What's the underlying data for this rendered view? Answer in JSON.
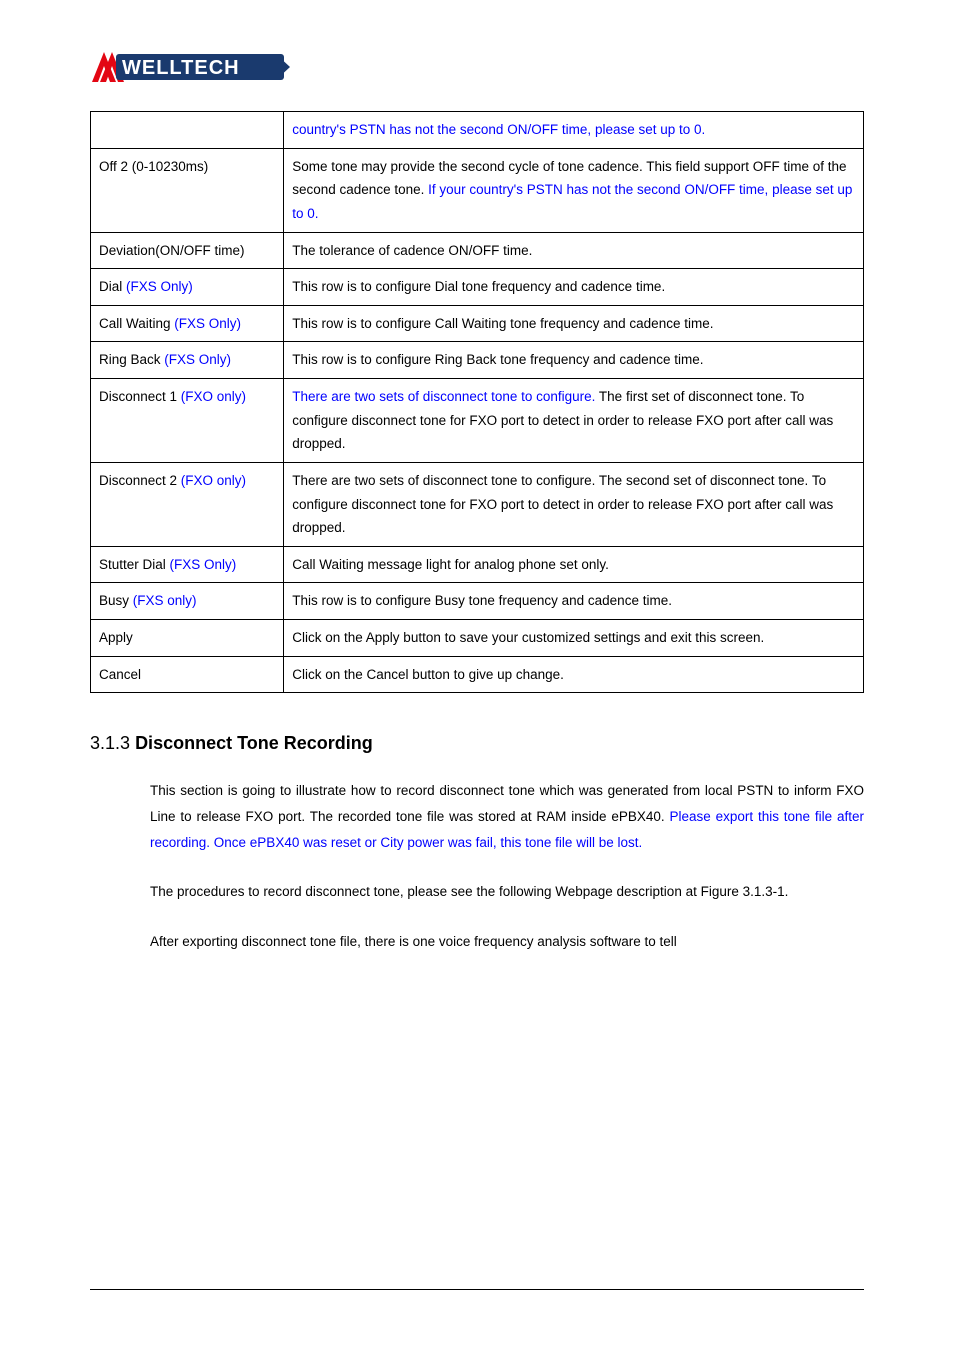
{
  "logo": {
    "arrow_color": "#e30613",
    "text_fill": "#ffffff",
    "text_bg": "#1a3a6e",
    "label": "WELLTECH"
  },
  "table": {
    "border_color": "#000000",
    "font_size": 13.5,
    "row_padding": "6px 8px",
    "rows": [
      {
        "label": "",
        "label_class": "",
        "desc_parts": [
          {
            "text": "country's PSTN has not the second ON/OFF time, please set up to 0.",
            "blue": true
          }
        ]
      },
      {
        "label": "Off 2 (0-10230ms)",
        "label_class": "",
        "desc_parts": [
          {
            "text": "Some tone may provide the second cycle of tone cadence. This field support OFF time of the second cadence tone. ",
            "blue": false
          },
          {
            "text": "If your country's PSTN has not the second ON/OFF time, please set up to 0.",
            "blue": true
          }
        ]
      },
      {
        "label": "Deviation(ON/OFF time)",
        "label_class": "",
        "desc_parts": [
          {
            "text": "The tolerance of cadence ON/OFF time.",
            "blue": false
          }
        ]
      },
      {
        "label_parts": [
          {
            "text": "Dial ",
            "blue": false
          },
          {
            "text": "(FXS Only)",
            "blue": true
          }
        ],
        "desc_parts": [
          {
            "text": "This row is to configure Dial tone frequency and cadence time.",
            "blue": false
          }
        ]
      },
      {
        "label_parts": [
          {
            "text": "Call Waiting ",
            "blue": false
          },
          {
            "text": "(FXS Only)",
            "blue": true
          }
        ],
        "desc_parts": [
          {
            "text": "This row is to configure Call Waiting tone frequency and cadence time.",
            "blue": false
          }
        ]
      },
      {
        "label_parts": [
          {
            "text": "Ring Back ",
            "blue": false
          },
          {
            "text": "(FXS Only)",
            "blue": true
          }
        ],
        "desc_parts": [
          {
            "text": "This row is to configure Ring Back tone frequency and cadence time.",
            "blue": false
          }
        ]
      },
      {
        "label_parts": [
          {
            "text": "Disconnect 1 ",
            "blue": false
          },
          {
            "text": "(FXO only)",
            "blue": true
          }
        ],
        "desc_parts": [
          {
            "text": "There are two sets of disconnect tone to configure.",
            "blue": true
          },
          {
            "text": " The first set of disconnect tone. To configure disconnect tone for FXO port to detect in order to release FXO port after call was dropped.",
            "blue": false
          }
        ]
      },
      {
        "label_parts": [
          {
            "text": "Disconnect 2 ",
            "blue": false
          },
          {
            "text": "(FXO only)",
            "blue": true
          }
        ],
        "desc_parts": [
          {
            "text": "There are two sets of disconnect tone to configure. The second set of disconnect tone. To configure disconnect tone for FXO port to detect in order to release FXO port after call was dropped.",
            "blue": false
          }
        ]
      },
      {
        "label_parts": [
          {
            "text": "Stutter Dial ",
            "blue": false
          },
          {
            "text": "(FXS Only)",
            "blue": true
          }
        ],
        "desc_parts": [
          {
            "text": "Call Waiting message light for analog phone set only.",
            "blue": false
          }
        ]
      },
      {
        "label_parts": [
          {
            "text": "Busy ",
            "blue": false
          },
          {
            "text": "(FXS only)",
            "blue": true
          }
        ],
        "desc_parts": [
          {
            "text": "This row is to configure Busy tone frequency and cadence time.",
            "blue": false
          }
        ]
      },
      {
        "label": "Apply",
        "desc_parts": [
          {
            "text": "Click on the Apply button to save your customized settings and exit this screen.",
            "blue": false
          }
        ]
      },
      {
        "label": "Cancel",
        "desc_parts": [
          {
            "text": "Click on the Cancel button to give up change.",
            "blue": false
          }
        ]
      }
    ]
  },
  "section": {
    "number": "3.1.3",
    "title": "Disconnect Tone Recording"
  },
  "para1_parts": [
    {
      "text": "This section is going to illustrate how to record disconnect tone which was generated from local PSTN to inform FXO Line to release FXO port. The recorded tone file was stored at RAM inside ePBX40. ",
      "blue": false
    },
    {
      "text": "Please export this tone file after recording. Once ePBX40 was reset or City power was fail, this tone file will be lost.",
      "blue": true
    }
  ],
  "para2": "The procedures to record disconnect tone, please see the following Webpage description at Figure 3.1.3-1.",
  "para3": "After exporting disconnect tone file, there is one voice frequency analysis software to tell"
}
